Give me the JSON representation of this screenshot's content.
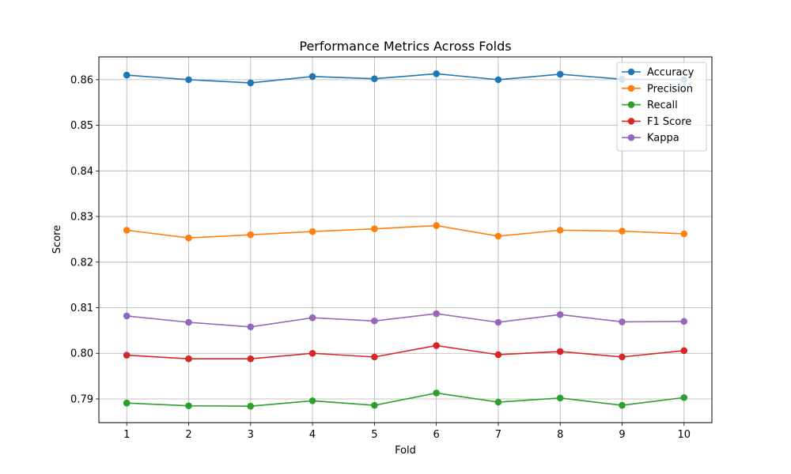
{
  "chart_data": {
    "type": "line",
    "title": "Performance Metrics Across Folds",
    "xlabel": "Fold",
    "ylabel": "Score",
    "x": [
      1,
      2,
      3,
      4,
      5,
      6,
      7,
      8,
      9,
      10
    ],
    "xlim": [
      0.55,
      10.45
    ],
    "ylim": [
      0.7848,
      0.865
    ],
    "yticks": [
      0.79,
      0.8,
      0.81,
      0.82,
      0.83,
      0.84,
      0.85,
      0.86
    ],
    "ytick_labels": [
      "0.79",
      "0.80",
      "0.81",
      "0.82",
      "0.83",
      "0.84",
      "0.85",
      "0.86"
    ],
    "xtick_labels": [
      "1",
      "2",
      "3",
      "4",
      "5",
      "6",
      "7",
      "8",
      "9",
      "10"
    ],
    "grid": true,
    "legend_position": "top-right",
    "series": [
      {
        "name": "Accuracy",
        "color": "#1f77b4",
        "values": [
          0.861,
          0.86,
          0.8593,
          0.8607,
          0.8602,
          0.8613,
          0.86,
          0.8612,
          0.8601,
          0.86
        ]
      },
      {
        "name": "Precision",
        "color": "#ff7f0e",
        "values": [
          0.827,
          0.8253,
          0.826,
          0.8267,
          0.8273,
          0.828,
          0.8257,
          0.827,
          0.8268,
          0.8262
        ]
      },
      {
        "name": "Recall",
        "color": "#2ca02c",
        "values": [
          0.7891,
          0.7885,
          0.7884,
          0.7896,
          0.7886,
          0.7913,
          0.7893,
          0.7902,
          0.7886,
          0.7903
        ]
      },
      {
        "name": "F1 Score",
        "color": "#d62728",
        "values": [
          0.7996,
          0.7988,
          0.7988,
          0.8,
          0.7992,
          0.8017,
          0.7997,
          0.8004,
          0.7992,
          0.8006
        ]
      },
      {
        "name": "Kappa",
        "color": "#9467bd",
        "values": [
          0.8082,
          0.8068,
          0.8058,
          0.8078,
          0.8071,
          0.8087,
          0.8068,
          0.8085,
          0.8069,
          0.807
        ]
      }
    ]
  }
}
